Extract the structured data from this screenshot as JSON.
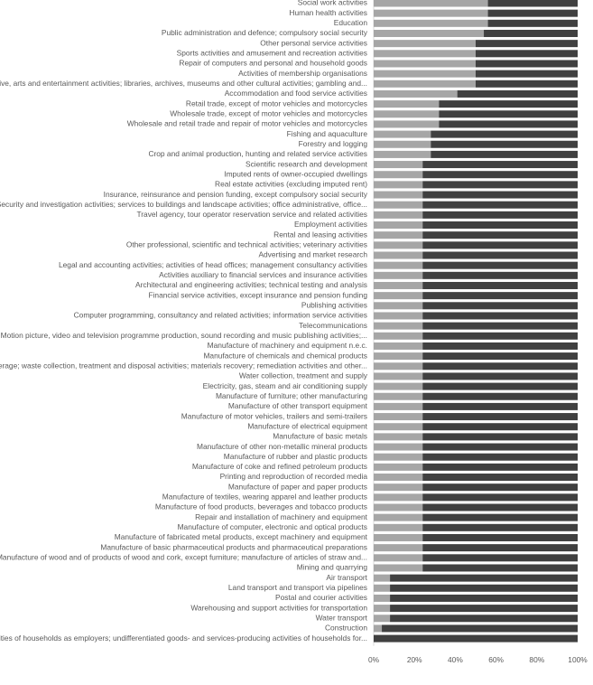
{
  "chart_data": {
    "type": "stacked-bar-horizontal",
    "categories": [
      "Social work activities",
      "Human health activities",
      "Education",
      "Public administration and defence; compulsory social security",
      "Other personal service activities",
      "Sports activities and amusement and recreation activities",
      "Repair of computers and personal and household goods",
      "Activities of membership organisations",
      "Creative, arts and entertainment activities; libraries, archives, museums and other cultural activities; gambling and...",
      "Accommodation and food service activities",
      "Retail trade, except of motor vehicles and motorcycles",
      "Wholesale trade, except of motor vehicles and motorcycles",
      "Wholesale and retail trade and repair of motor vehicles and motorcycles",
      "Fishing and aquaculture",
      "Forestry and logging",
      "Crop and animal production, hunting and related service activities",
      "Scientific research and development",
      "Imputed rents of owner-occupied dwellings",
      "Real estate activities (excluding imputed rent)",
      "Insurance, reinsurance and pension funding, except compulsory social security",
      "Security and investigation activities; services to buildings and landscape activities; office administrative, office...",
      "Travel agency, tour operator reservation service and related activities",
      "Employment activities",
      "Rental and leasing activities",
      "Other professional, scientific and technical activities; veterinary activities",
      "Advertising and market research",
      "Legal and accounting activities; activities of head offices; management consultancy activities",
      "Activities auxiliary to financial services and insurance activities",
      "Architectural and engineering activities; technical testing and analysis",
      "Financial service activities, except insurance and pension funding",
      "Publishing activities",
      "Computer programming, consultancy and related activities; information service activities",
      "Telecommunications",
      "Motion picture, video and television programme production, sound recording and music publishing activities;...",
      "Manufacture of machinery and equipment n.e.c.",
      "Manufacture of chemicals and chemical products",
      "Sewerage; waste collection, treatment and disposal activities; materials recovery; remediation activities and other...",
      "Water collection, treatment and supply",
      "Electricity, gas, steam and air conditioning supply",
      "Manufacture of furniture; other manufacturing",
      "Manufacture of other transport equipment",
      "Manufacture of motor vehicles, trailers and semi-trailers",
      "Manufacture of electrical equipment",
      "Manufacture of basic metals",
      "Manufacture of other non-metallic mineral products",
      "Manufacture of rubber and plastic products",
      "Manufacture of coke and refined petroleum products",
      "Printing and reproduction of recorded media",
      "Manufacture of paper and paper products",
      "Manufacture of textiles, wearing apparel and leather products",
      "Manufacture of food products, beverages and tobacco products",
      "Repair and installation of machinery and equipment",
      "Manufacture of computer, electronic and optical products",
      "Manufacture of fabricated metal products, except machinery and equipment",
      "Manufacture of basic pharmaceutical products and pharmaceutical preparations",
      "Manufacture of wood and of products of wood and cork, except furniture; manufacture of articles of straw and...",
      "Mining and quarrying",
      "Air transport",
      "Land transport and transport via pipelines",
      "Postal and courier activities",
      "Warehousing and support activities for transportation",
      "Water transport",
      "Construction",
      "Activities of households as employers; undifferentiated goods- and services-producing activities of households for..."
    ],
    "series": [
      {
        "color": "#a6a6a6",
        "values": [
          56,
          56,
          56,
          54,
          50,
          50,
          50,
          50,
          50,
          41,
          32,
          32,
          32,
          28,
          28,
          28,
          24,
          24,
          24,
          24,
          24,
          24,
          24,
          24,
          24,
          24,
          24,
          24,
          24,
          24,
          24,
          24,
          24,
          24,
          24,
          24,
          24,
          24,
          24,
          24,
          24,
          24,
          24,
          24,
          24,
          24,
          24,
          24,
          24,
          24,
          24,
          24,
          24,
          24,
          24,
          24,
          24,
          8,
          8,
          8,
          8,
          8,
          4,
          0
        ]
      },
      {
        "color": "#404040",
        "values": [
          44,
          44,
          44,
          46,
          50,
          50,
          50,
          50,
          50,
          59,
          68,
          68,
          68,
          72,
          72,
          72,
          76,
          76,
          76,
          76,
          76,
          76,
          76,
          76,
          76,
          76,
          76,
          76,
          76,
          76,
          76,
          76,
          76,
          76,
          76,
          76,
          76,
          76,
          76,
          76,
          76,
          76,
          76,
          76,
          76,
          76,
          76,
          76,
          76,
          76,
          76,
          76,
          76,
          76,
          76,
          76,
          76,
          92,
          92,
          92,
          92,
          92,
          96,
          100
        ]
      }
    ],
    "xlim": [
      0,
      100
    ],
    "xticks": [
      {
        "value": 0,
        "label": "0%"
      },
      {
        "value": 20,
        "label": "20%"
      },
      {
        "value": 40,
        "label": "40%"
      },
      {
        "value": 60,
        "label": "60%"
      },
      {
        "value": 80,
        "label": "80%"
      },
      {
        "value": 100,
        "label": "100%"
      }
    ]
  }
}
